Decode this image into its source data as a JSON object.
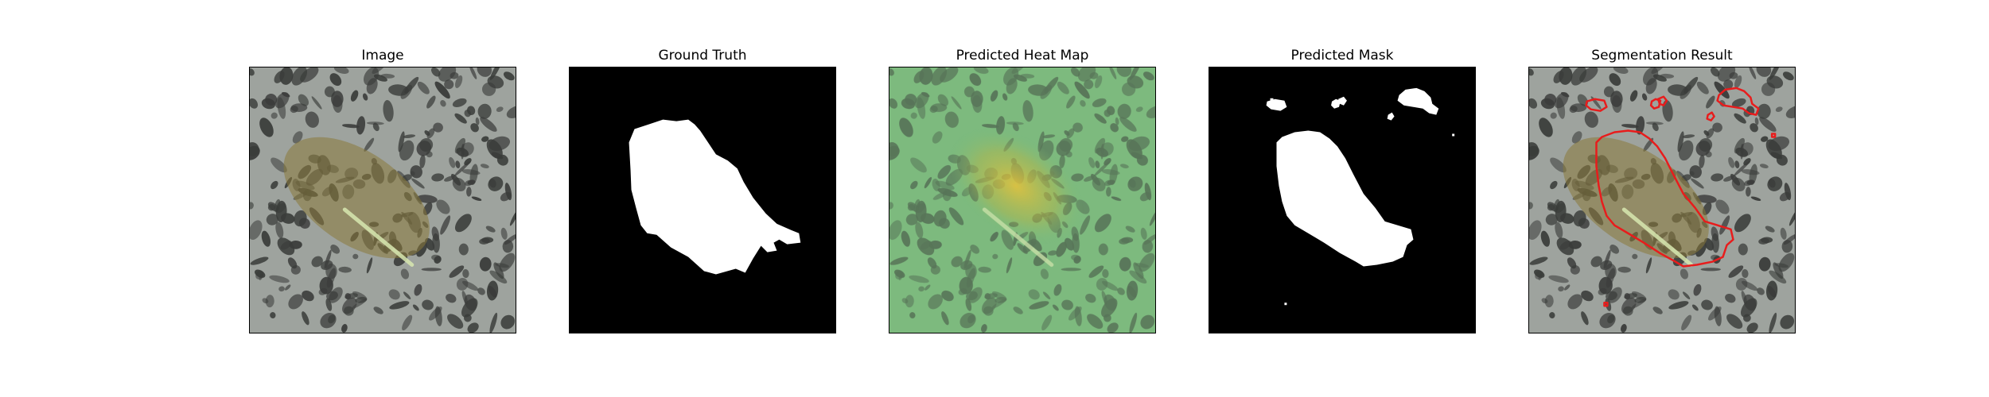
{
  "figure": {
    "panels": [
      {
        "title": "Image",
        "kind": "image"
      },
      {
        "title": "Ground Truth",
        "kind": "mask"
      },
      {
        "title": "Predicted Heat Map",
        "kind": "heatmap"
      },
      {
        "title": "Predicted Mask",
        "kind": "mask"
      },
      {
        "title": "Segmentation Result",
        "kind": "overlay"
      }
    ]
  },
  "colors": {
    "background": "#ffffff",
    "mask_foreground": "#ffffff",
    "mask_background": "#000000",
    "heatmap_low": "#7ec27f",
    "heatmap_high": "#e8c23a",
    "contour": "#e81c1c",
    "texture_base": "#9ea39e",
    "texture_spots": "#3a3c3a",
    "object_tint": "#8a7a3a"
  }
}
